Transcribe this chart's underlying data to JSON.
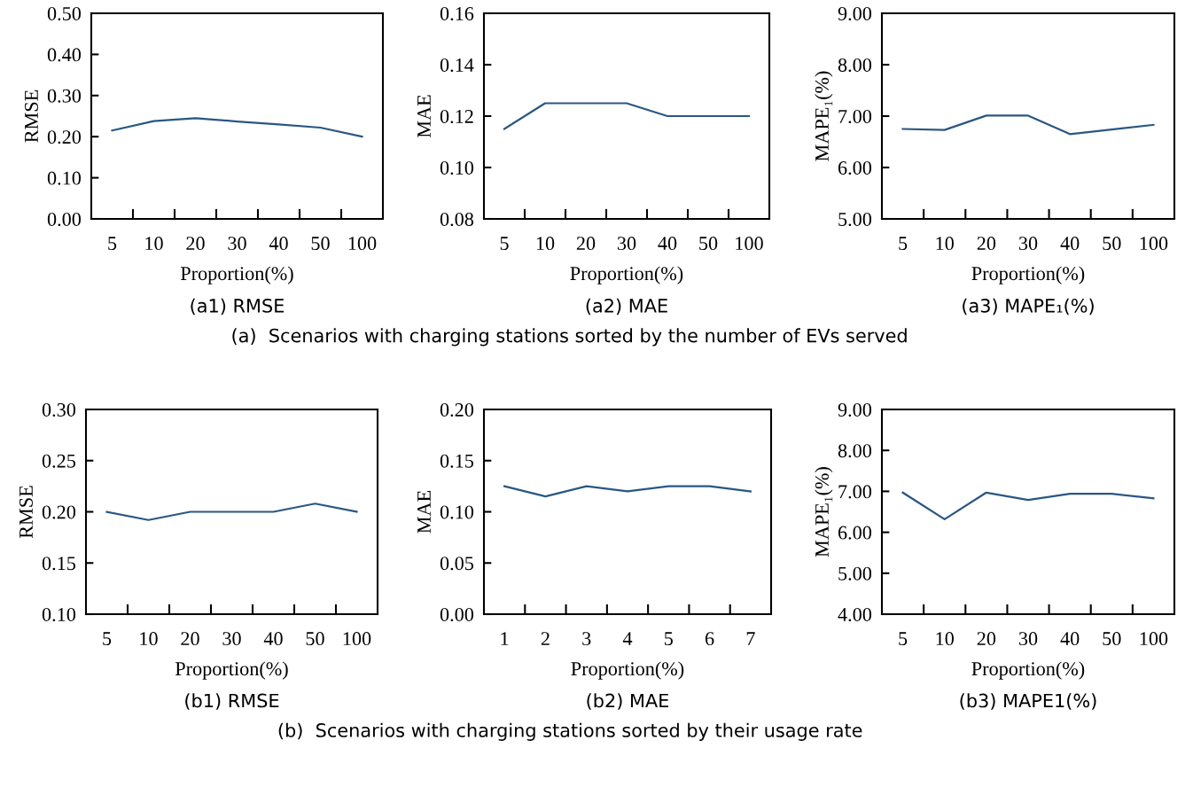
{
  "chart_data": [
    {
      "type": "line",
      "xlabel": "Proportion(%)",
      "ylabel": "RMSE",
      "categories": [
        "5",
        "10",
        "20",
        "30",
        "40",
        "50",
        "100"
      ],
      "values": [
        0.215,
        0.238,
        0.245,
        0.237,
        0.23,
        0.222,
        0.2
      ],
      "color": "#2a5783",
      "ylim": [
        0,
        0.5
      ],
      "yticks": [
        {
          "value": 0,
          "label": "0.00"
        },
        {
          "value": 0.1,
          "label": "0.10"
        },
        {
          "value": 0.2,
          "label": "0.20"
        },
        {
          "value": 0.3,
          "label": "0.30"
        },
        {
          "value": 0.4,
          "label": "0.40"
        },
        {
          "value": 0.5,
          "label": "0.50"
        }
      ],
      "annotations": [
        "(a1) RMSE"
      ]
    },
    {
      "type": "line",
      "xlabel": "Proportion(%)",
      "ylabel": "MAE",
      "categories": [
        "5",
        "10",
        "20",
        "30",
        "40",
        "50",
        "100"
      ],
      "values": [
        0.115,
        0.125,
        0.125,
        0.125,
        0.12,
        0.12,
        0.12
      ],
      "color": "#2a5783",
      "ylim": [
        0.08,
        0.16
      ],
      "yticks": [
        {
          "value": 0.08,
          "label": "0.08"
        },
        {
          "value": 0.1,
          "label": "0.10"
        },
        {
          "value": 0.12,
          "label": "0.12"
        },
        {
          "value": 0.14,
          "label": "0.14"
        },
        {
          "value": 0.16,
          "label": "0.16"
        }
      ],
      "annotations": [
        "(a2) MAE",
        "(a)  Scenarios with charging stations sorted by the number of EVs served"
      ]
    },
    {
      "type": "line",
      "xlabel": "Proportion(%)",
      "ylabel": "MAPE₁(%)",
      "categories": [
        "5",
        "10",
        "20",
        "30",
        "40",
        "50",
        "100"
      ],
      "values": [
        6.75,
        6.73,
        7.01,
        7.01,
        6.65,
        6.74,
        6.83
      ],
      "color": "#2a5783",
      "ylim": [
        5,
        9
      ],
      "yticks": [
        {
          "value": 5,
          "label": "5.00"
        },
        {
          "value": 6,
          "label": "6.00"
        },
        {
          "value": 7,
          "label": "7.00"
        },
        {
          "value": 8,
          "label": "8.00"
        },
        {
          "value": 9,
          "label": "9.00"
        }
      ],
      "annotations": [
        "(a3) MAPE₁(%)"
      ]
    },
    {
      "type": "line",
      "xlabel": "Proportion(%)",
      "ylabel": "RMSE",
      "categories": [
        "5",
        "10",
        "20",
        "30",
        "40",
        "50",
        "100"
      ],
      "values": [
        0.2,
        0.192,
        0.2,
        0.2,
        0.2,
        0.208,
        0.2
      ],
      "color": "#2a5783",
      "ylim": [
        0.1,
        0.3
      ],
      "yticks": [
        {
          "value": 0.1,
          "label": "0.10"
        },
        {
          "value": 0.15,
          "label": "0.15"
        },
        {
          "value": 0.2,
          "label": "0.20"
        },
        {
          "value": 0.25,
          "label": "0.25"
        },
        {
          "value": 0.3,
          "label": "0.30"
        }
      ],
      "annotations": [
        "(b1) RMSE"
      ]
    },
    {
      "type": "line",
      "xlabel": "Proportion(%)",
      "ylabel": "MAE",
      "categories": [
        "1",
        "2",
        "3",
        "4",
        "5",
        "6",
        "7"
      ],
      "values": [
        0.125,
        0.115,
        0.125,
        0.12,
        0.125,
        0.125,
        0.12
      ],
      "color": "#2a5783",
      "ylim": [
        0,
        0.2
      ],
      "yticks": [
        {
          "value": 0,
          "label": "0.00"
        },
        {
          "value": 0.05,
          "label": "0.05"
        },
        {
          "value": 0.1,
          "label": "0.10"
        },
        {
          "value": 0.15,
          "label": "0.15"
        },
        {
          "value": 0.2,
          "label": "0.20"
        }
      ],
      "annotations": [
        "(b2) MAE",
        "(b)  Scenarios with charging stations sorted by their usage rate"
      ]
    },
    {
      "type": "line",
      "xlabel": "Proportion(%)",
      "ylabel": "MAPE₁(%)",
      "categories": [
        "5",
        "10",
        "20",
        "30",
        "40",
        "50",
        "100"
      ],
      "values": [
        6.97,
        6.32,
        6.97,
        6.79,
        6.94,
        6.94,
        6.83
      ],
      "color": "#2a5783",
      "ylim": [
        4,
        9
      ],
      "yticks": [
        {
          "value": 4,
          "label": "4.00"
        },
        {
          "value": 5,
          "label": "5.00"
        },
        {
          "value": 6,
          "label": "6.00"
        },
        {
          "value": 7,
          "label": "7.00"
        },
        {
          "value": 8,
          "label": "8.00"
        },
        {
          "value": 9,
          "label": "9.00"
        }
      ],
      "annotations": [
        "(b3) MAPE1(%)"
      ]
    }
  ]
}
